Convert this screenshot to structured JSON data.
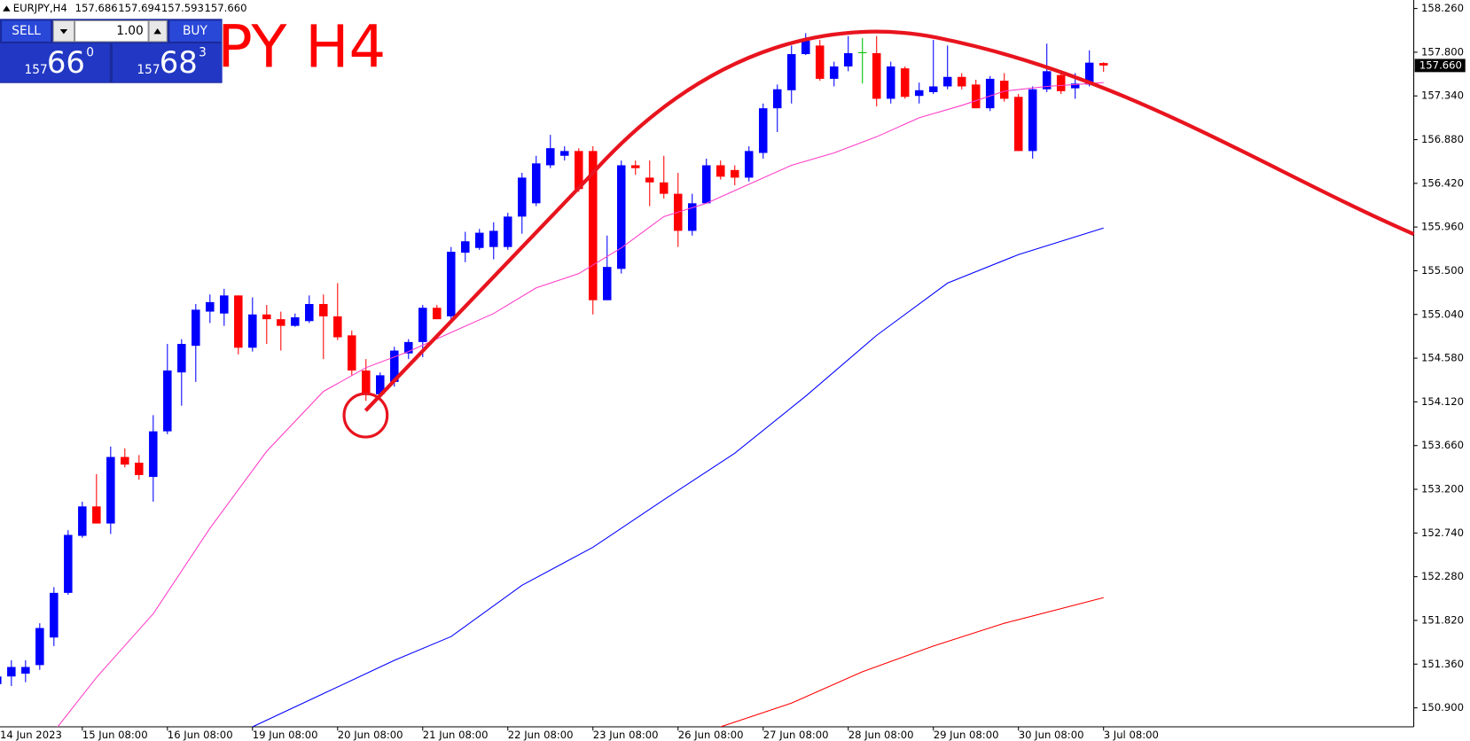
{
  "header": {
    "symbol": "EURJPY,H4",
    "ohlc_labels": [
      "157.686",
      "157.694",
      "157.593",
      "157.660"
    ]
  },
  "overlay_text": "PY H4",
  "trade_panel": {
    "sell": "SELL",
    "lot": "1.00",
    "buy": "BUY",
    "bid_big": "157",
    "bid_main": "66",
    "bid_sup": "0",
    "ask_big": "157",
    "ask_main": "68",
    "ask_sup": "3"
  },
  "chart_data": {
    "type": "candlestick",
    "up_color": "#0000ff",
    "down_color": "#ff0000",
    "doji_color": "#00c000",
    "categories": [
      "14 Jun 2023",
      null,
      null,
      null,
      null,
      null,
      "15 Jun 08:00",
      null,
      null,
      null,
      null,
      null,
      "16 Jun 08:00",
      null,
      null,
      null,
      null,
      null,
      "19 Jun 08:00",
      null,
      null,
      null,
      null,
      null,
      "20 Jun 08:00",
      null,
      null,
      null,
      null,
      null,
      "21 Jun 08:00",
      null,
      null,
      null,
      null,
      null,
      "22 Jun 08:00",
      null,
      null,
      null,
      null,
      null,
      "23 Jun 08:00",
      null,
      null,
      null,
      null,
      null,
      "26 Jun 08:00",
      null,
      null,
      null,
      null,
      null,
      "27 Jun 08:00",
      null,
      null,
      null,
      null,
      null,
      "28 Jun 08:00",
      null,
      null,
      null,
      null,
      null,
      "29 Jun 08:00",
      null,
      null,
      null,
      null,
      null,
      "30 Jun 08:00",
      null,
      null,
      null,
      null,
      null,
      "3 Jul 08:00"
    ],
    "open": [
      151.15,
      151.23,
      151.26,
      151.35,
      151.64,
      152.11,
      152.71,
      153.02,
      152.84,
      153.54,
      153.48,
      153.33,
      153.81,
      154.43,
      154.71,
      155.07,
      155.05,
      155.24,
      154.69,
      155.04,
      154.99,
      154.92,
      154.97,
      155.15,
      155.02,
      154.82,
      154.45,
      154.2,
      154.33,
      154.63,
      154.75,
      155.11,
      155.02,
      155.69,
      155.74,
      155.75,
      155.75,
      156.07,
      156.21,
      156.61,
      156.71,
      156.76,
      156.76,
      155.19,
      155.52,
      156.61,
      156.48,
      156.43,
      156.31,
      155.92,
      156.21,
      156.61,
      156.56,
      156.48,
      156.74,
      157.21,
      157.4,
      157.78,
      157.87,
      157.52,
      157.65,
      157.8,
      157.79,
      157.31,
      157.63,
      157.34,
      157.38,
      157.44,
      157.54,
      157.46,
      157.21,
      157.5,
      157.33,
      156.76,
      157.41,
      157.56,
      157.42,
      157.46,
      157.686
    ],
    "high": [
      151.28,
      151.4,
      151.4,
      151.79,
      152.17,
      152.77,
      153.07,
      153.36,
      153.65,
      153.63,
      153.56,
      153.98,
      154.73,
      154.78,
      155.15,
      155.25,
      155.31,
      155.24,
      155.22,
      155.14,
      155.07,
      155.05,
      155.24,
      155.25,
      155.37,
      154.87,
      154.57,
      154.43,
      154.7,
      154.78,
      155.14,
      155.14,
      155.75,
      155.91,
      155.94,
      156.01,
      156.11,
      156.53,
      156.71,
      156.93,
      156.81,
      156.79,
      156.81,
      155.87,
      156.66,
      156.66,
      156.66,
      156.71,
      156.53,
      156.31,
      156.68,
      156.66,
      156.61,
      156.81,
      157.26,
      157.46,
      157.87,
      158.0,
      157.93,
      157.7,
      157.97,
      157.95,
      157.97,
      157.7,
      157.65,
      157.48,
      157.93,
      157.87,
      157.58,
      157.51,
      157.55,
      157.58,
      157.36,
      157.44,
      157.89,
      157.61,
      157.58,
      157.82,
      157.694
    ],
    "low": [
      151.1,
      151.13,
      151.17,
      151.3,
      151.55,
      152.09,
      152.69,
      152.84,
      152.73,
      153.43,
      153.3,
      153.07,
      153.78,
      154.08,
      154.33,
      154.95,
      154.92,
      154.62,
      154.65,
      154.73,
      154.66,
      154.91,
      154.95,
      154.57,
      154.77,
      154.4,
      154.13,
      154.18,
      154.28,
      154.57,
      154.59,
      154.99,
      154.99,
      155.59,
      155.72,
      155.62,
      155.72,
      155.89,
      156.18,
      156.58,
      156.66,
      156.33,
      155.04,
      155.19,
      155.47,
      156.51,
      156.18,
      156.26,
      155.75,
      155.87,
      156.21,
      156.46,
      156.4,
      156.44,
      156.68,
      156.96,
      157.26,
      157.77,
      157.5,
      157.44,
      157.6,
      157.47,
      157.23,
      157.26,
      157.31,
      157.26,
      157.36,
      157.41,
      157.41,
      157.21,
      157.18,
      157.28,
      156.76,
      156.68,
      157.38,
      157.36,
      157.31,
      157.44,
      157.593
    ],
    "close": [
      151.23,
      151.33,
      151.33,
      151.74,
      152.11,
      152.72,
      153.02,
      152.84,
      153.54,
      153.46,
      153.35,
      153.81,
      154.45,
      154.73,
      155.09,
      155.17,
      155.24,
      154.69,
      155.04,
      154.99,
      154.92,
      155.01,
      155.15,
      155.02,
      154.8,
      154.45,
      154.2,
      154.4,
      154.66,
      154.75,
      155.11,
      154.99,
      155.7,
      155.81,
      155.9,
      155.92,
      156.07,
      156.48,
      156.63,
      156.79,
      156.76,
      156.36,
      155.19,
      155.54,
      156.61,
      156.58,
      156.43,
      156.31,
      155.92,
      156.21,
      156.61,
      156.49,
      156.48,
      156.76,
      157.21,
      157.41,
      157.78,
      157.92,
      157.52,
      157.65,
      157.79,
      157.8,
      157.31,
      157.65,
      157.33,
      157.4,
      157.44,
      157.54,
      157.44,
      157.21,
      157.52,
      157.31,
      156.76,
      157.41,
      157.6,
      157.39,
      157.47,
      157.69,
      157.66
    ],
    "indicators": [
      {
        "color": "#ff3cc8",
        "x": [
          4,
          7,
          11,
          15,
          19,
          23,
          26,
          29,
          32,
          35,
          38,
          41,
          44,
          47,
          50,
          53,
          56,
          59,
          62,
          65,
          68,
          71,
          74,
          78
        ],
        "values": [
          150.65,
          151.22,
          151.89,
          152.79,
          153.6,
          154.23,
          154.48,
          154.65,
          154.85,
          155.05,
          155.32,
          155.47,
          155.74,
          156.07,
          156.21,
          156.41,
          156.61,
          156.74,
          156.91,
          157.11,
          157.24,
          157.39,
          157.44,
          157.48
        ]
      },
      {
        "color": "#0000ff",
        "x": [
          18,
          23,
          28,
          32,
          37,
          42,
          47,
          52,
          57,
          62,
          67,
          72,
          78
        ],
        "values": [
          150.7,
          151.05,
          151.4,
          151.65,
          152.19,
          152.59,
          153.09,
          153.58,
          154.18,
          154.82,
          155.37,
          155.67,
          155.95
        ]
      },
      {
        "color": "#ff0000",
        "x": [
          51,
          56,
          61,
          66,
          71,
          78
        ],
        "values": [
          150.7,
          150.95,
          151.28,
          151.55,
          151.79,
          152.06
        ]
      }
    ],
    "ylim": [
      150.7,
      158.26
    ],
    "yticks": [
      {
        "value": 158.26,
        "label": "158.260"
      },
      {
        "value": 157.8,
        "label": "157.800"
      },
      {
        "value": 157.34,
        "label": "157.340"
      },
      {
        "value": 156.88,
        "label": "156.880"
      },
      {
        "value": 156.42,
        "label": "156.420"
      },
      {
        "value": 155.96,
        "label": "155.960"
      },
      {
        "value": 155.5,
        "label": "155.500"
      },
      {
        "value": 155.04,
        "label": "155.040"
      },
      {
        "value": 154.58,
        "label": "154.580"
      },
      {
        "value": 154.12,
        "label": "154.120"
      },
      {
        "value": 153.66,
        "label": "153.660"
      },
      {
        "value": 153.2,
        "label": "153.200"
      },
      {
        "value": 152.74,
        "label": "152.740"
      },
      {
        "value": 152.28,
        "label": "152.280"
      },
      {
        "value": 151.82,
        "label": "151.820"
      },
      {
        "value": 151.36,
        "label": "151.360"
      },
      {
        "value": 150.9,
        "label": "150.900"
      }
    ],
    "current_price": {
      "value": 157.66,
      "label": "157.660"
    }
  }
}
